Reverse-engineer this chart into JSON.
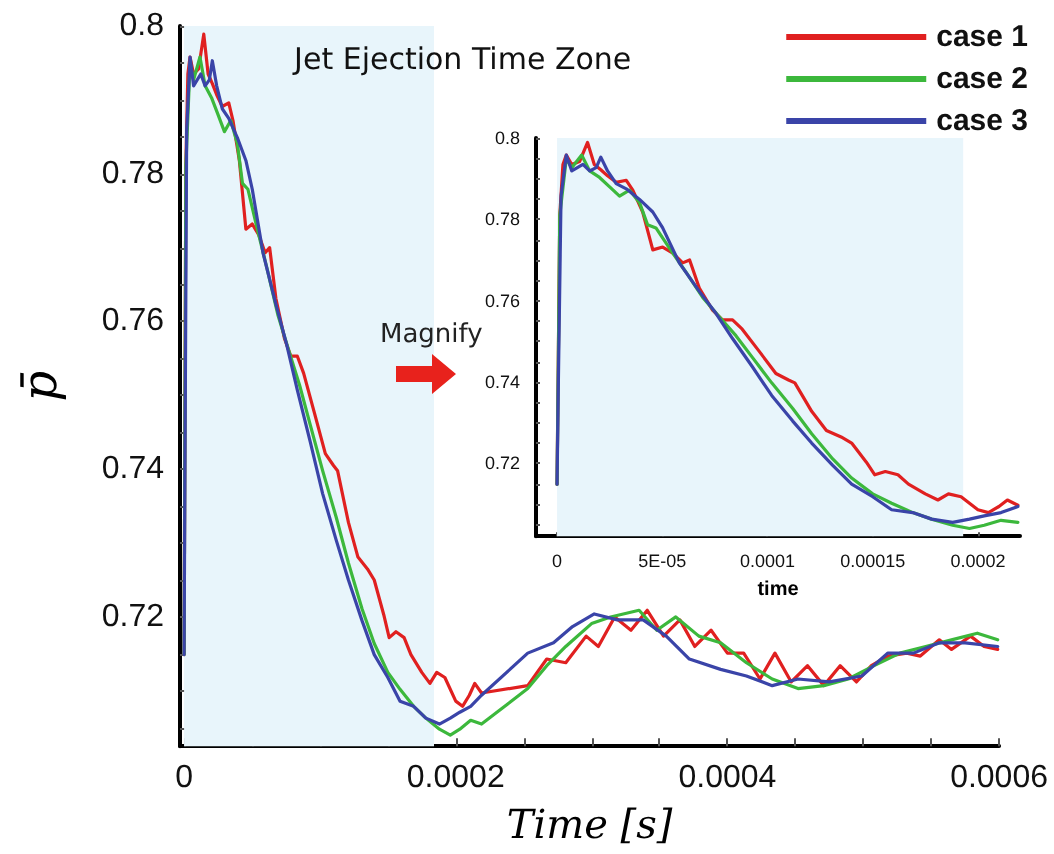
{
  "chart_data": [
    {
      "type": "line",
      "xlabel": "Time [s]",
      "ylabel": "p̄",
      "legend": "top right",
      "marker": "none",
      "grid": false,
      "xlim": [
        -3e-06,
        0.0006
      ],
      "ylim": [
        0.7025,
        0.8
      ],
      "xticks": [
        0,
        {
          "value": 5e-05,
          "label": null
        },
        {
          "value": 0.0001,
          "label": null
        },
        {
          "value": 0.00015,
          "label": null
        },
        0.0002,
        {
          "value": 0.00025,
          "label": null
        },
        {
          "value": 0.0003,
          "label": null
        },
        {
          "value": 0.00035,
          "label": null
        },
        0.0004,
        {
          "value": 0.00045,
          "label": null
        },
        {
          "value": 0.0005,
          "label": null
        },
        {
          "value": 0.00055,
          "label": null
        },
        0.0006
      ],
      "yticks": [
        {
          "value": 0.705,
          "label": null
        },
        {
          "value": 0.71,
          "label": null
        },
        {
          "value": 0.715,
          "label": null
        },
        0.72,
        {
          "value": 0.725,
          "label": null
        },
        {
          "value": 0.73,
          "label": null
        },
        {
          "value": 0.735,
          "label": null
        },
        0.74,
        {
          "value": 0.745,
          "label": null
        },
        {
          "value": 0.75,
          "label": null
        },
        {
          "value": 0.755,
          "label": null
        },
        0.76,
        {
          "value": 0.765,
          "label": null
        },
        {
          "value": 0.77,
          "label": null
        },
        {
          "value": 0.775,
          "label": null
        },
        0.78,
        {
          "value": 0.785,
          "label": null
        },
        {
          "value": 0.79,
          "label": null
        },
        {
          "value": 0.795,
          "label": null
        },
        0.8
      ],
      "bands": [
        {
          "axis": "x",
          "from": 0,
          "to": 0.000184,
          "label": "Jet Ejection Time Zone",
          "color": "#e8f5fb"
        }
      ],
      "annotations": [
        "Magnify"
      ],
      "series": [
        {
          "name": "case 1",
          "color": "#e02020",
          "x": [
            0,
            1.3e-06,
            2.8e-06,
            4.4e-06,
            7e-06,
            1.07e-05,
            1.45e-05,
            1.77e-05,
            2.08e-05,
            2.4e-05,
            2.81e-05,
            3.29e-05,
            3.6e-05,
            4.07e-05,
            4.55e-05,
            5.02e-05,
            5.5e-05,
            5.97e-05,
            6.3e-05,
            6.76e-05,
            7.39e-05,
            7.86e-05,
            8.34e-05,
            8.8e-05,
            9.6e-05,
            0.000104,
            0.00011,
            0.000113,
            0.000121,
            0.000128,
            0.000135,
            0.00014,
            0.000147,
            0.000151,
            0.000156,
            0.000162,
            0.000167,
            0.000175,
            0.000181,
            0.000186,
            0.000192,
            0.0002,
            0.000205,
            0.00021,
            0.000214,
            0.000219,
            0.000253,
            0.000267,
            0.000281,
            0.000296,
            0.000305,
            0.000317,
            0.000329,
            0.000341,
            0.000353,
            0.000365,
            0.000376,
            0.000388,
            0.0004,
            0.000412,
            0.000424,
            0.000435,
            0.000447,
            0.000459,
            0.000471,
            0.000483,
            0.000495,
            0.000506,
            0.000518,
            0.000532,
            0.000542,
            0.000556,
            0.000565,
            0.000579,
            0.000589,
            0.000599
          ],
          "values": [
            0.7149,
            0.781,
            0.7935,
            0.7958,
            0.7935,
            0.7942,
            0.7989,
            0.7935,
            0.7922,
            0.7907,
            0.7891,
            0.7896,
            0.7872,
            0.7818,
            0.7725,
            0.7732,
            0.7717,
            0.7693,
            0.77,
            0.7631,
            0.7577,
            0.7553,
            0.7553,
            0.753,
            0.7476,
            0.7421,
            0.7405,
            0.7398,
            0.7328,
            0.7281,
            0.7265,
            0.725,
            0.7203,
            0.7172,
            0.718,
            0.7172,
            0.7149,
            0.7125,
            0.711,
            0.7125,
            0.7118,
            0.7086,
            0.7079,
            0.7094,
            0.711,
            0.7097,
            0.7107,
            0.7143,
            0.7138,
            0.7174,
            0.716,
            0.72,
            0.7182,
            0.7209,
            0.7174,
            0.7196,
            0.716,
            0.7182,
            0.7151,
            0.7151,
            0.7116,
            0.7151,
            0.7112,
            0.7134,
            0.7107,
            0.7134,
            0.7112,
            0.7134,
            0.7147,
            0.7151,
            0.7147,
            0.7169,
            0.7156,
            0.7174,
            0.716,
            0.7156
          ]
        },
        {
          "name": "case 2",
          "color": "#3cb83c",
          "x": [
            0,
            1.3e-06,
            4.4e-06,
            7e-06,
            1.17e-05,
            1.55e-05,
            2.02e-05,
            2.5e-05,
            2.97e-05,
            3.44e-05,
            3.92e-05,
            4.3e-05,
            4.7e-05,
            5.34e-05,
            6.13e-05,
            6.92e-05,
            7.7e-05,
            8.5e-05,
            9.29e-05,
            0.000102,
            0.000112,
            0.000121,
            0.000131,
            0.00014,
            0.00015,
            0.000159,
            0.000169,
            0.000178,
            0.000188,
            0.000196,
            0.000203,
            0.000211,
            0.000219,
            0.000253,
            0.000267,
            0.000281,
            0.0003,
            0.000314,
            0.000335,
            0.000348,
            0.000362,
            0.000379,
            0.000395,
            0.000414,
            0.000433,
            0.000452,
            0.000471,
            0.000489,
            0.000508,
            0.000527,
            0.000546,
            0.000565,
            0.000584,
            0.000599
          ],
          "values": [
            0.7149,
            0.781,
            0.795,
            0.7927,
            0.7958,
            0.7919,
            0.7903,
            0.788,
            0.7857,
            0.7872,
            0.7841,
            0.7787,
            0.7779,
            0.7729,
            0.767,
            0.7608,
            0.7561,
            0.7514,
            0.746,
            0.7398,
            0.7335,
            0.7273,
            0.7211,
            0.7164,
            0.7125,
            0.7102,
            0.7079,
            0.7063,
            0.7048,
            0.704,
            0.7048,
            0.706,
            0.7055,
            0.7103,
            0.7134,
            0.716,
            0.7191,
            0.72,
            0.7209,
            0.7182,
            0.72,
            0.7174,
            0.7165,
            0.7138,
            0.7116,
            0.7103,
            0.7107,
            0.7116,
            0.7134,
            0.7151,
            0.716,
            0.7169,
            0.7178,
            0.7169
          ]
        },
        {
          "name": "case 3",
          "color": "#3a44a8",
          "x": [
            0,
            6e-07,
            1.9e-06,
            4.4e-06,
            7e-06,
            1.23e-05,
            1.55e-05,
            1.86e-05,
            2.08e-05,
            2.4e-05,
            2.81e-05,
            3.29e-05,
            3.92e-05,
            4.55e-05,
            5.02e-05,
            5.81e-05,
            6.76e-05,
            7.55e-05,
            8.34e-05,
            9.29e-05,
            0.000102,
            0.000112,
            0.000121,
            0.000131,
            0.00014,
            0.00015,
            0.000159,
            0.000169,
            0.000178,
            0.000188,
            0.000196,
            0.000203,
            0.000211,
            0.000219,
            0.000253,
            0.000272,
            0.000286,
            0.000302,
            0.000319,
            0.000338,
            0.000355,
            0.000372,
            0.000395,
            0.000414,
            0.000433,
            0.000452,
            0.000475,
            0.000499,
            0.000518,
            0.000537,
            0.000556,
            0.000575,
            0.000599
          ],
          "values": [
            0.7149,
            0.739,
            0.7857,
            0.7958,
            0.7919,
            0.7935,
            0.7919,
            0.7927,
            0.7953,
            0.7919,
            0.7888,
            0.7875,
            0.7849,
            0.7818,
            0.7779,
            0.7693,
            0.7623,
            0.7569,
            0.7507,
            0.7437,
            0.7367,
            0.7304,
            0.725,
            0.7195,
            0.7149,
            0.7118,
            0.7086,
            0.7079,
            0.7063,
            0.7055,
            0.7063,
            0.7071,
            0.7079,
            0.7094,
            0.7151,
            0.7165,
            0.7187,
            0.7204,
            0.7196,
            0.7196,
            0.7174,
            0.7143,
            0.7129,
            0.712,
            0.7107,
            0.7116,
            0.7112,
            0.712,
            0.7151,
            0.7151,
            0.7165,
            0.7165,
            0.716
          ]
        }
      ]
    },
    {
      "type": "line",
      "xlabel": "time",
      "marker": "none",
      "grid": false,
      "legend": false,
      "xlim": [
        -1e-05,
        0.00022
      ],
      "ylim": [
        0.7021,
        0.8
      ],
      "xticks": [
        0,
        {
          "value": 5e-05,
          "label": "5E-05"
        },
        0.0001,
        0.00015,
        0.0002
      ],
      "yticks": [
        {
          "value": 0.705,
          "label": null
        },
        {
          "value": 0.71,
          "label": null
        },
        {
          "value": 0.715,
          "label": null
        },
        0.72,
        {
          "value": 0.725,
          "label": null
        },
        {
          "value": 0.73,
          "label": null
        },
        {
          "value": 0.735,
          "label": null
        },
        0.74,
        {
          "value": 0.745,
          "label": null
        },
        {
          "value": 0.75,
          "label": null
        },
        {
          "value": 0.755,
          "label": null
        },
        0.76,
        {
          "value": 0.765,
          "label": null
        },
        {
          "value": 0.77,
          "label": null
        },
        {
          "value": 0.775,
          "label": null
        },
        0.78,
        {
          "value": 0.785,
          "label": null
        },
        {
          "value": 0.79,
          "label": null
        },
        {
          "value": 0.795,
          "label": null
        },
        0.8
      ],
      "bands": [
        {
          "axis": "x",
          "from": 0,
          "to": 0.000193,
          "color": "#e8f5fb"
        }
      ],
      "series": [
        {
          "color": "#e02020",
          "x": [
            0,
            1.3e-06,
            2.8e-06,
            4.4e-06,
            7e-06,
            1.07e-05,
            1.45e-05,
            1.77e-05,
            2.08e-05,
            2.4e-05,
            2.81e-05,
            3.29e-05,
            3.6e-05,
            4.07e-05,
            4.55e-05,
            5.02e-05,
            5.5e-05,
            5.97e-05,
            6.3e-05,
            6.76e-05,
            7.39e-05,
            7.86e-05,
            8.34e-05,
            8.8e-05,
            9.6e-05,
            0.000104,
            0.00011,
            0.000113,
            0.000121,
            0.000128,
            0.000135,
            0.00014,
            0.000147,
            0.000151,
            0.000156,
            0.000162,
            0.000167,
            0.000175,
            0.000181,
            0.000186,
            0.000192,
            0.0002,
            0.000205,
            0.00021,
            0.000214,
            0.000219
          ],
          "values": [
            0.7149,
            0.781,
            0.7935,
            0.7958,
            0.7935,
            0.7942,
            0.7989,
            0.7935,
            0.7922,
            0.7907,
            0.7891,
            0.7896,
            0.7872,
            0.7818,
            0.7725,
            0.7732,
            0.7717,
            0.7693,
            0.77,
            0.7631,
            0.7577,
            0.7553,
            0.7553,
            0.753,
            0.7476,
            0.7421,
            0.7405,
            0.7398,
            0.7328,
            0.7281,
            0.7265,
            0.725,
            0.7203,
            0.7172,
            0.718,
            0.7172,
            0.7149,
            0.7125,
            0.711,
            0.7125,
            0.7118,
            0.7086,
            0.7079,
            0.7094,
            0.711,
            0.7097
          ]
        },
        {
          "color": "#3cb83c",
          "x": [
            0,
            1.3e-06,
            4.4e-06,
            7e-06,
            1.17e-05,
            1.55e-05,
            2.02e-05,
            2.5e-05,
            2.97e-05,
            3.44e-05,
            3.92e-05,
            4.3e-05,
            4.7e-05,
            5.34e-05,
            6.13e-05,
            6.92e-05,
            7.7e-05,
            8.5e-05,
            9.29e-05,
            0.000102,
            0.000112,
            0.000121,
            0.000131,
            0.00014,
            0.00015,
            0.000159,
            0.000169,
            0.000178,
            0.000188,
            0.000196,
            0.000203,
            0.000211,
            0.000219
          ],
          "values": [
            0.7149,
            0.781,
            0.795,
            0.7927,
            0.7958,
            0.7919,
            0.7903,
            0.788,
            0.7857,
            0.7872,
            0.7841,
            0.7787,
            0.7779,
            0.7729,
            0.767,
            0.7608,
            0.7561,
            0.7514,
            0.746,
            0.7398,
            0.7335,
            0.7273,
            0.7211,
            0.7164,
            0.7125,
            0.7102,
            0.7079,
            0.7063,
            0.7048,
            0.704,
            0.7048,
            0.706,
            0.7055
          ]
        },
        {
          "color": "#3a44a8",
          "x": [
            0,
            6e-07,
            1.9e-06,
            4.4e-06,
            7e-06,
            1.23e-05,
            1.55e-05,
            1.86e-05,
            2.08e-05,
            2.4e-05,
            2.81e-05,
            3.29e-05,
            3.92e-05,
            4.55e-05,
            5.02e-05,
            5.81e-05,
            6.76e-05,
            7.55e-05,
            8.34e-05,
            9.29e-05,
            0.000102,
            0.000112,
            0.000121,
            0.000131,
            0.00014,
            0.00015,
            0.000159,
            0.000169,
            0.000178,
            0.000188,
            0.000196,
            0.000203,
            0.000211,
            0.000219
          ],
          "values": [
            0.7149,
            0.739,
            0.7857,
            0.7958,
            0.7919,
            0.7935,
            0.7919,
            0.7927,
            0.7953,
            0.7919,
            0.7888,
            0.7875,
            0.7849,
            0.7818,
            0.7779,
            0.7693,
            0.7623,
            0.7569,
            0.7507,
            0.7437,
            0.7367,
            0.7304,
            0.725,
            0.7195,
            0.7149,
            0.7118,
            0.7086,
            0.7079,
            0.7063,
            0.7055,
            0.7063,
            0.7071,
            0.7079,
            0.7094
          ]
        }
      ]
    }
  ]
}
